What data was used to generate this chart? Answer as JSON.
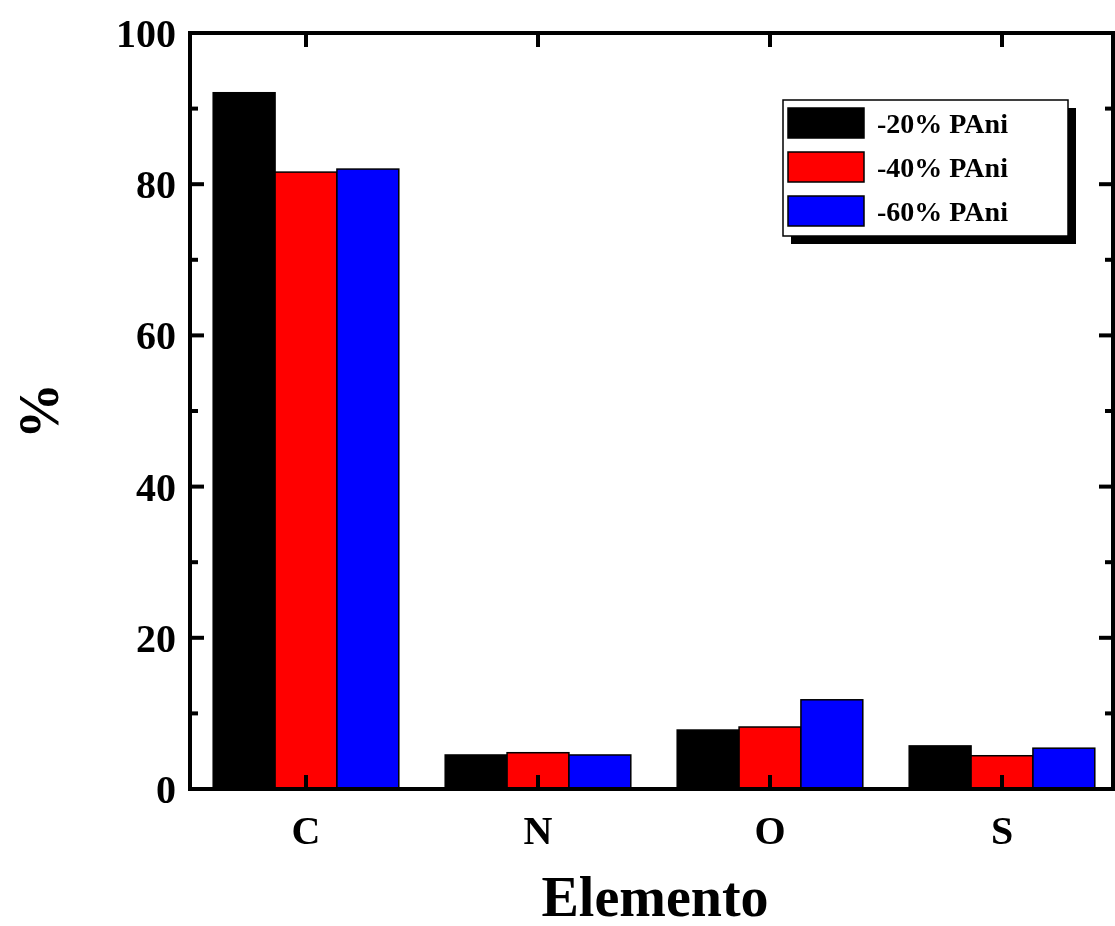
{
  "chart_data": {
    "type": "bar",
    "xlabel": "Elemento",
    "ylabel": "%",
    "categories": [
      "C",
      "N",
      "O",
      "S"
    ],
    "series": [
      {
        "name": "-20% PAni",
        "color": "#000000",
        "values": [
          92.1,
          4.5,
          7.8,
          5.7
        ]
      },
      {
        "name": "-40% PAni",
        "color": "#ff0000",
        "values": [
          81.6,
          4.8,
          8.2,
          4.4
        ]
      },
      {
        "name": "-60% PAni",
        "color": "#0000ff",
        "values": [
          82.0,
          4.5,
          11.8,
          5.4
        ]
      }
    ],
    "ylim": [
      0,
      100
    ],
    "yticks": [
      0,
      {
        "value": 10,
        "label": null
      },
      20,
      {
        "value": 30,
        "label": null
      },
      40,
      {
        "value": 50,
        "label": null
      },
      60,
      {
        "value": 70,
        "label": null
      },
      80,
      {
        "value": 90,
        "label": null
      },
      100
    ],
    "legend": "top right",
    "grid": false
  }
}
